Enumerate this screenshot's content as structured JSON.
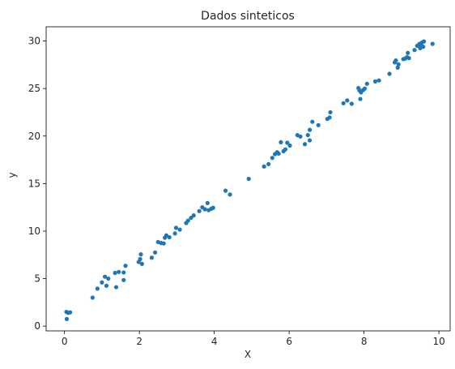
{
  "chart_data": {
    "type": "scatter",
    "title": "Dados sinteticos",
    "xlabel": "X",
    "ylabel": "y",
    "xlim": [
      -0.49,
      10.3
    ],
    "ylim": [
      -0.5,
      31.5
    ],
    "xticks": [
      0,
      2,
      4,
      6,
      8,
      10
    ],
    "xtick_labels": [
      "0",
      "2",
      "4",
      "6",
      "8",
      "10"
    ],
    "yticks": [
      0,
      5,
      10,
      15,
      20,
      25,
      30
    ],
    "ytick_labels": [
      "0",
      "5",
      "10",
      "15",
      "20",
      "25",
      "30"
    ],
    "grid": false,
    "legend": "none",
    "marker_color": "#1f77b4",
    "points": [
      {
        "x": 0.05,
        "y": 1.5
      },
      {
        "x": 0.1,
        "y": 1.4
      },
      {
        "x": 0.15,
        "y": 1.45
      },
      {
        "x": 0.06,
        "y": 0.75
      },
      {
        "x": 0.75,
        "y": 3.0
      },
      {
        "x": 0.88,
        "y": 3.95
      },
      {
        "x": 1.0,
        "y": 4.6
      },
      {
        "x": 1.08,
        "y": 5.2
      },
      {
        "x": 1.12,
        "y": 4.25
      },
      {
        "x": 1.17,
        "y": 5.0
      },
      {
        "x": 1.35,
        "y": 5.6
      },
      {
        "x": 1.38,
        "y": 4.1
      },
      {
        "x": 1.45,
        "y": 5.7
      },
      {
        "x": 1.58,
        "y": 5.65
      },
      {
        "x": 1.58,
        "y": 4.85
      },
      {
        "x": 1.63,
        "y": 6.35
      },
      {
        "x": 1.98,
        "y": 6.75
      },
      {
        "x": 2.02,
        "y": 7.05
      },
      {
        "x": 2.04,
        "y": 7.55
      },
      {
        "x": 2.07,
        "y": 6.55
      },
      {
        "x": 2.33,
        "y": 7.2
      },
      {
        "x": 2.42,
        "y": 7.75
      },
      {
        "x": 2.5,
        "y": 8.85
      },
      {
        "x": 2.58,
        "y": 8.75
      },
      {
        "x": 2.65,
        "y": 8.7
      },
      {
        "x": 2.68,
        "y": 9.3
      },
      {
        "x": 2.72,
        "y": 9.55
      },
      {
        "x": 2.8,
        "y": 9.35
      },
      {
        "x": 2.95,
        "y": 9.75
      },
      {
        "x": 2.98,
        "y": 10.35
      },
      {
        "x": 3.08,
        "y": 10.15
      },
      {
        "x": 3.25,
        "y": 10.85
      },
      {
        "x": 3.3,
        "y": 11.1
      },
      {
        "x": 3.38,
        "y": 11.4
      },
      {
        "x": 3.45,
        "y": 11.65
      },
      {
        "x": 3.6,
        "y": 12.1
      },
      {
        "x": 3.68,
        "y": 12.5
      },
      {
        "x": 3.75,
        "y": 12.3
      },
      {
        "x": 3.82,
        "y": 12.95
      },
      {
        "x": 3.85,
        "y": 12.2
      },
      {
        "x": 3.92,
        "y": 12.35
      },
      {
        "x": 3.97,
        "y": 12.45
      },
      {
        "x": 4.3,
        "y": 14.25
      },
      {
        "x": 4.42,
        "y": 13.85
      },
      {
        "x": 4.92,
        "y": 15.5
      },
      {
        "x": 5.33,
        "y": 16.8
      },
      {
        "x": 5.45,
        "y": 17.05
      },
      {
        "x": 5.55,
        "y": 17.7
      },
      {
        "x": 5.62,
        "y": 18.1
      },
      {
        "x": 5.68,
        "y": 18.3
      },
      {
        "x": 5.72,
        "y": 18.15
      },
      {
        "x": 5.78,
        "y": 19.35
      },
      {
        "x": 5.85,
        "y": 18.4
      },
      {
        "x": 5.9,
        "y": 18.6
      },
      {
        "x": 5.95,
        "y": 19.3
      },
      {
        "x": 6.02,
        "y": 19.0
      },
      {
        "x": 6.22,
        "y": 20.1
      },
      {
        "x": 6.3,
        "y": 19.95
      },
      {
        "x": 6.42,
        "y": 19.15
      },
      {
        "x": 6.5,
        "y": 20.1
      },
      {
        "x": 6.55,
        "y": 20.65
      },
      {
        "x": 6.55,
        "y": 19.55
      },
      {
        "x": 6.62,
        "y": 21.5
      },
      {
        "x": 6.78,
        "y": 21.15
      },
      {
        "x": 7.02,
        "y": 21.8
      },
      {
        "x": 7.08,
        "y": 21.95
      },
      {
        "x": 7.1,
        "y": 22.5
      },
      {
        "x": 7.45,
        "y": 23.45
      },
      {
        "x": 7.55,
        "y": 23.75
      },
      {
        "x": 7.67,
        "y": 23.4
      },
      {
        "x": 7.85,
        "y": 25.05
      },
      {
        "x": 7.88,
        "y": 24.8
      },
      {
        "x": 7.9,
        "y": 23.9
      },
      {
        "x": 7.92,
        "y": 24.6
      },
      {
        "x": 7.98,
        "y": 24.85
      },
      {
        "x": 8.02,
        "y": 25.0
      },
      {
        "x": 8.08,
        "y": 25.5
      },
      {
        "x": 8.3,
        "y": 25.75
      },
      {
        "x": 8.4,
        "y": 25.85
      },
      {
        "x": 8.68,
        "y": 26.55
      },
      {
        "x": 8.82,
        "y": 27.75
      },
      {
        "x": 8.85,
        "y": 27.95
      },
      {
        "x": 8.9,
        "y": 27.2
      },
      {
        "x": 8.92,
        "y": 27.55
      },
      {
        "x": 9.05,
        "y": 28.1
      },
      {
        "x": 9.1,
        "y": 28.15
      },
      {
        "x": 9.15,
        "y": 28.3
      },
      {
        "x": 9.17,
        "y": 28.75
      },
      {
        "x": 9.2,
        "y": 28.2
      },
      {
        "x": 9.35,
        "y": 29.05
      },
      {
        "x": 9.42,
        "y": 29.5
      },
      {
        "x": 9.48,
        "y": 29.7
      },
      {
        "x": 9.5,
        "y": 29.25
      },
      {
        "x": 9.52,
        "y": 29.6
      },
      {
        "x": 9.55,
        "y": 29.85
      },
      {
        "x": 9.58,
        "y": 29.4
      },
      {
        "x": 9.6,
        "y": 29.95
      },
      {
        "x": 9.83,
        "y": 29.7
      }
    ]
  }
}
